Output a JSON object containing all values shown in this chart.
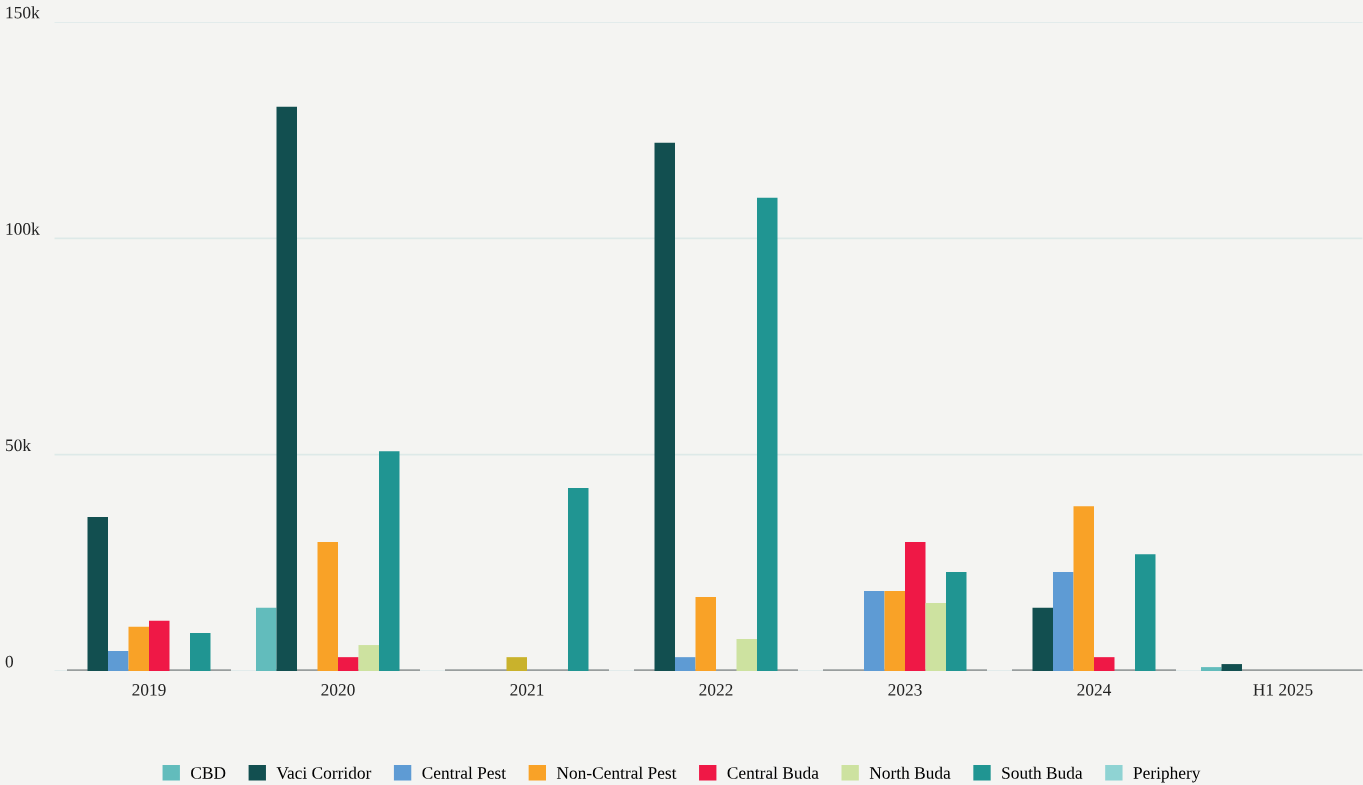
{
  "chart_data": {
    "type": "bar",
    "categories": [
      "2019",
      "2020",
      "2021",
      "2022",
      "2023",
      "2024",
      "H1 2025"
    ],
    "series": [
      {
        "name": "CBD",
        "color": "#62bcbc",
        "values": [
          null,
          14600,
          null,
          null,
          null,
          null,
          900
        ]
      },
      {
        "name": "Vaci Corridor",
        "color": "#124f50",
        "values": [
          35600,
          130400,
          null,
          122100,
          null,
          14600,
          1600
        ]
      },
      {
        "name": "Central Pest",
        "color": "#5e9bd4",
        "values": [
          4600,
          null,
          null,
          3200,
          18500,
          22900,
          null
        ]
      },
      {
        "name": "Non-Central Pest",
        "color": "#f9a227",
        "colors": [
          "#f9a227",
          "#f9a227",
          "#c9b22c",
          "#f9a227",
          "#f9a227",
          "#f9a227",
          "#f9a227"
        ],
        "values": [
          10200,
          29800,
          3200,
          17100,
          18500,
          38100,
          null
        ]
      },
      {
        "name": "Central Buda",
        "color": "#ef1846",
        "values": [
          11600,
          3200,
          null,
          null,
          29800,
          3200,
          null
        ]
      },
      {
        "name": "North Buda",
        "color": "#cde2a0",
        "values": [
          null,
          6000,
          null,
          7400,
          15700,
          null,
          null
        ]
      },
      {
        "name": "South Buda",
        "color": "#209592",
        "values": [
          8800,
          50800,
          42300,
          109400,
          22900,
          27000,
          null
        ]
      },
      {
        "name": "Periphery",
        "color": "#8fd3d3",
        "values": [
          null,
          null,
          null,
          null,
          null,
          null,
          null
        ]
      }
    ],
    "ylim": [
      0,
      150000
    ],
    "yticks": [
      {
        "value": 0,
        "label": "0"
      },
      {
        "value": 50000,
        "label": "50k"
      },
      {
        "value": 100000,
        "label": "100k"
      },
      {
        "value": 150000,
        "label": "150k"
      }
    ],
    "grid": "y",
    "legend": "bottom"
  }
}
